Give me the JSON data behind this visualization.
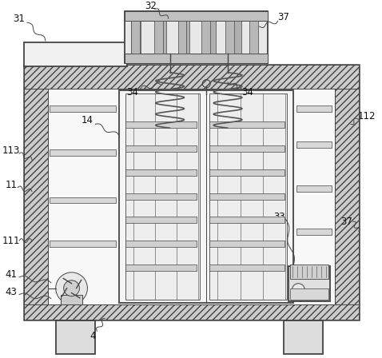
{
  "bg_color": "#ffffff",
  "lc": "#444444",
  "hatch_color": "#888888",
  "wall_fill": "#c8c8c8",
  "inner_fill": "#f2f2f2",
  "shelf_fill": "#d8d8d8",
  "leg_fill": "#dddddd"
}
